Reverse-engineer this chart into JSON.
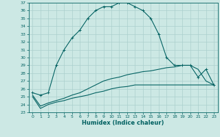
{
  "xlabel": "Humidex (Indice chaleur)",
  "xlim": [
    -0.5,
    23.5
  ],
  "ylim": [
    23,
    37
  ],
  "yticks": [
    23,
    24,
    25,
    26,
    27,
    28,
    29,
    30,
    31,
    32,
    33,
    34,
    35,
    36,
    37
  ],
  "xticks": [
    0,
    1,
    2,
    3,
    4,
    5,
    6,
    7,
    8,
    9,
    10,
    11,
    12,
    13,
    14,
    15,
    16,
    17,
    18,
    19,
    20,
    21,
    22,
    23
  ],
  "bg_color": "#cce8e4",
  "line_color": "#006060",
  "grid_color": "#aacfcc",
  "curve1_x": [
    0,
    1,
    2,
    3,
    4,
    5,
    6,
    7,
    8,
    9,
    10,
    11,
    12,
    13,
    14,
    15,
    16,
    17,
    18,
    19,
    20,
    21,
    22,
    23
  ],
  "curve1_y": [
    25.5,
    25.2,
    25.5,
    29.0,
    31.0,
    32.5,
    33.5,
    35.0,
    36.0,
    36.5,
    36.5,
    37.0,
    37.0,
    36.5,
    36.0,
    35.0,
    33.0,
    30.0,
    29.0,
    29.0,
    29.0,
    27.5,
    28.5,
    26.5
  ],
  "curve2_x": [
    0,
    1,
    2,
    3,
    4,
    5,
    6,
    7,
    8,
    9,
    10,
    11,
    12,
    13,
    14,
    15,
    16,
    17,
    18,
    19,
    20,
    21,
    22,
    23
  ],
  "curve2_y": [
    25.0,
    23.5,
    24.0,
    24.3,
    24.5,
    24.8,
    25.0,
    25.2,
    25.5,
    25.7,
    26.0,
    26.2,
    26.3,
    26.5,
    26.5,
    26.5,
    26.5,
    26.5,
    26.5,
    26.5,
    26.5,
    26.5,
    26.5,
    26.5
  ],
  "curve3_x": [
    0,
    1,
    2,
    3,
    4,
    5,
    6,
    7,
    8,
    9,
    10,
    11,
    12,
    13,
    14,
    15,
    16,
    17,
    18,
    19,
    20,
    21,
    22,
    23
  ],
  "curve3_y": [
    25.2,
    23.8,
    24.2,
    24.5,
    24.8,
    25.2,
    25.5,
    26.0,
    26.5,
    27.0,
    27.3,
    27.5,
    27.8,
    28.0,
    28.2,
    28.3,
    28.5,
    28.7,
    28.8,
    29.0,
    29.0,
    28.5,
    27.0,
    26.5
  ],
  "tick_fontsize": 4.5,
  "xlabel_fontsize": 6.0,
  "lw": 0.8
}
